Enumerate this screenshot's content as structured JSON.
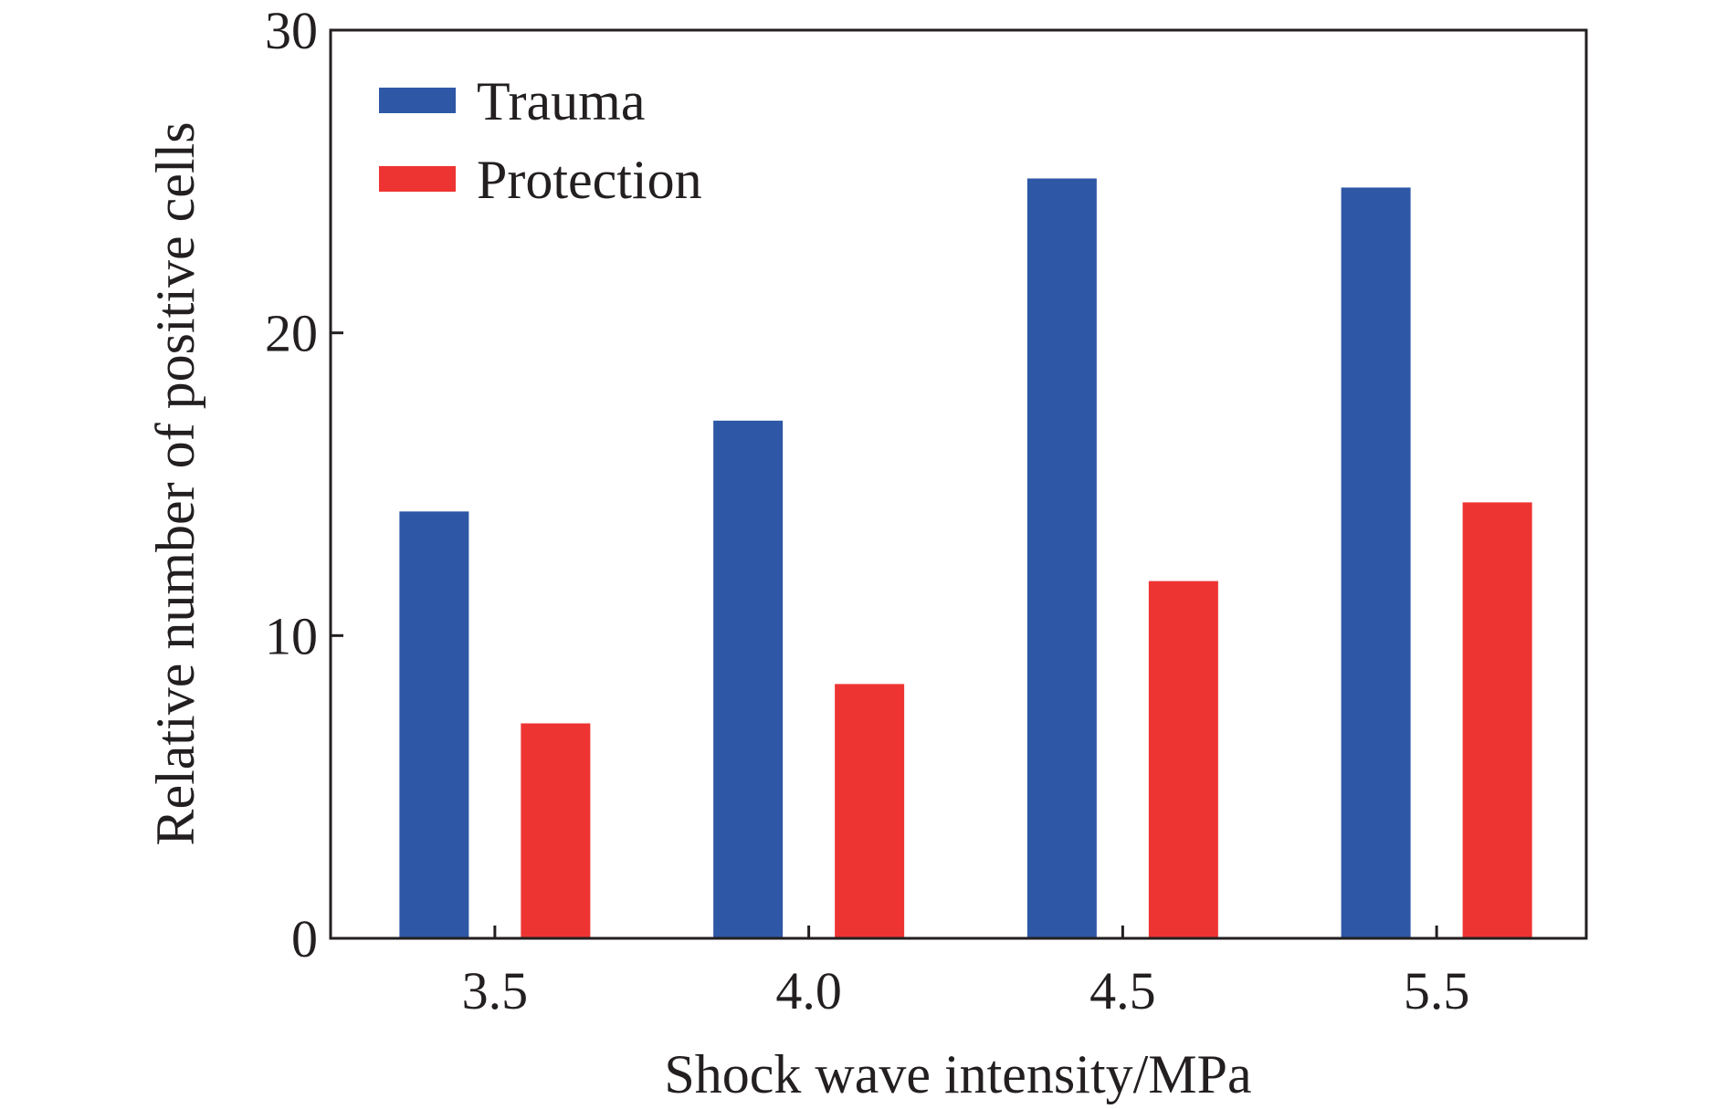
{
  "chart_data": {
    "type": "bar",
    "categories": [
      "3.5",
      "4.0",
      "4.5",
      "5.5"
    ],
    "series": [
      {
        "name": "Trauma",
        "color": "#2e58a6",
        "values": [
          14.1,
          17.1,
          25.1,
          24.8
        ]
      },
      {
        "name": "Protection",
        "color": "#ee3432",
        "values": [
          7.1,
          8.4,
          11.8,
          14.4
        ]
      }
    ],
    "xlabel": "Shock wave intensity/MPa",
    "ylabel": "Relative number of positive cells",
    "ylim": [
      0,
      30
    ],
    "yticks": [
      "0",
      "10",
      "20",
      "30"
    ],
    "grid": false,
    "legend_position": "top-left"
  }
}
